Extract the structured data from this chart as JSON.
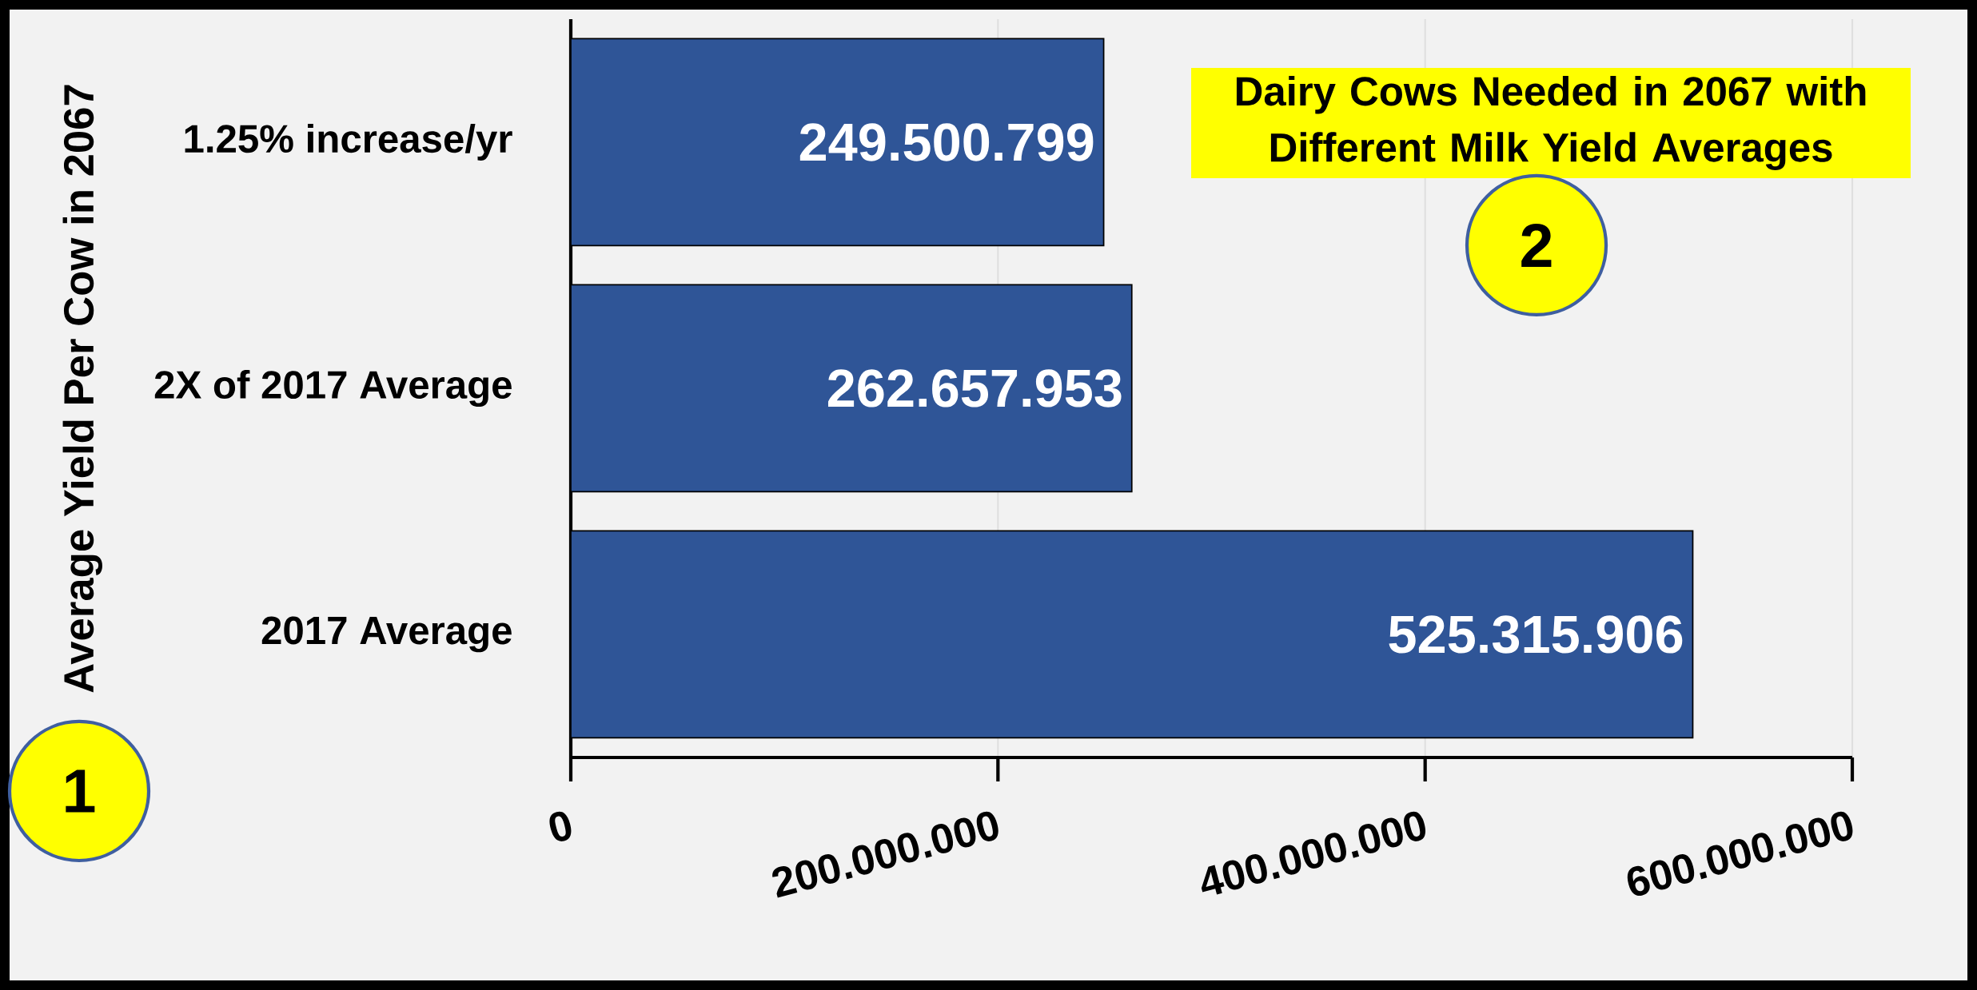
{
  "chart_data": {
    "type": "bar",
    "orientation": "horizontal",
    "title": "Dairy Cows Needed in 2067 with Different Milk Yield Averages",
    "ylabel": "Average Yield Per Cow in 2067",
    "categories": [
      "1.25% increase/yr",
      "2X of 2017 Average",
      "2017 Average"
    ],
    "values": [
      249500799,
      262657953,
      525315906
    ],
    "value_labels": [
      "249.500.799",
      "262.657.953",
      "525.315.906"
    ],
    "color": "#2f5597",
    "xlim": [
      0,
      600000000
    ],
    "xticks": [
      0,
      {
        "value": 200000000,
        "label": "200.000.000"
      },
      {
        "value": 400000000,
        "label": "400.000.000"
      },
      {
        "value": 600000000,
        "label": "600.000.000"
      }
    ],
    "grid": "x",
    "annotations": [
      "1",
      "2"
    ]
  }
}
